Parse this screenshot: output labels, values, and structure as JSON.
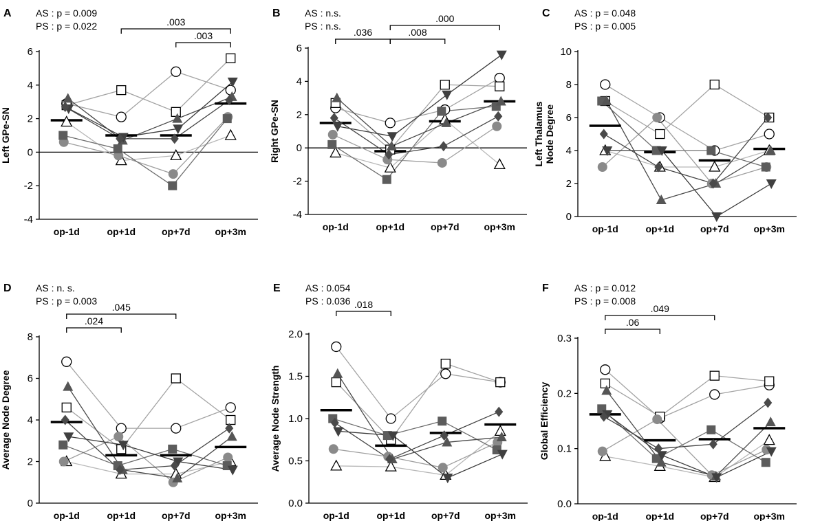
{
  "chart_data": [
    {
      "panel": "A",
      "type": "scatter",
      "categories": [
        "op-1d",
        "op+1d",
        "op+7d",
        "op+3m"
      ],
      "ylabel": [
        "Left GPe-SN"
      ],
      "ylim": [
        -4,
        6
      ],
      "yticks": [
        -4,
        -2,
        0,
        2,
        4,
        6
      ],
      "zero_line": true,
      "stats": [
        "AS : p = 0.009",
        "PS : p = 0.022"
      ],
      "brackets": [
        {
          "from": 1,
          "to": 3,
          "label": ".003",
          "level": 0
        },
        {
          "from": 2,
          "to": 3,
          "label": ".003",
          "level": 1
        }
      ],
      "means": [
        1.9,
        1.0,
        1.0,
        2.9
      ],
      "series": [
        {
          "name": "open-circle",
          "values": [
            2.9,
            2.1,
            4.8,
            3.7
          ]
        },
        {
          "name": "open-square",
          "values": [
            2.8,
            3.7,
            2.4,
            5.6
          ]
        },
        {
          "name": "open-triangle",
          "values": [
            1.8,
            -0.5,
            -0.2,
            1.0
          ]
        },
        {
          "name": "grey-circle",
          "values": [
            0.6,
            -0.2,
            -1.3,
            2.1
          ]
        },
        {
          "name": "dark-square",
          "values": [
            1.0,
            0.2,
            -2.0,
            2.0
          ]
        },
        {
          "name": "dark-triangle",
          "values": [
            3.2,
            0.7,
            2.0,
            3.3
          ]
        },
        {
          "name": "dark-inv-triangle",
          "values": [
            2.6,
            0.9,
            1.4,
            4.2
          ]
        },
        {
          "name": "dark-diamond",
          "values": [
            2.7,
            0.8,
            0.8,
            3.1
          ]
        }
      ]
    },
    {
      "panel": "B",
      "type": "scatter",
      "categories": [
        "op-1d",
        "op+1d",
        "op+7d",
        "op+3m"
      ],
      "ylabel": [
        "Right GPe-SN"
      ],
      "ylim": [
        -4,
        6
      ],
      "yticks": [
        -4,
        -2,
        0,
        2,
        4,
        6
      ],
      "zero_line": true,
      "stats": [
        "AS : n.s.",
        "PS : n.s."
      ],
      "brackets": [
        {
          "from": 0,
          "to": 1,
          "label": ".036",
          "level": 1
        },
        {
          "from": 1,
          "to": 2,
          "label": ".008",
          "level": 1
        },
        {
          "from": 1,
          "to": 3,
          "label": ".000",
          "level": 0
        }
      ],
      "means": [
        1.5,
        -0.2,
        1.6,
        2.8
      ],
      "series": [
        {
          "name": "open-circle",
          "values": [
            2.4,
            1.5,
            2.3,
            4.2
          ]
        },
        {
          "name": "open-square",
          "values": [
            2.7,
            -0.1,
            3.8,
            3.7
          ]
        },
        {
          "name": "open-triangle",
          "values": [
            -0.3,
            -1.2,
            1.7,
            -1.0
          ]
        },
        {
          "name": "grey-circle",
          "values": [
            0.8,
            -0.7,
            -0.9,
            1.3
          ]
        },
        {
          "name": "dark-square",
          "values": [
            0.2,
            -1.9,
            2.2,
            2.5
          ]
        },
        {
          "name": "dark-triangle",
          "values": [
            3.0,
            0.1,
            1.5,
            2.8
          ]
        },
        {
          "name": "dark-inv-triangle",
          "values": [
            1.3,
            0.7,
            3.2,
            5.6
          ]
        },
        {
          "name": "dark-diamond",
          "values": [
            1.8,
            -0.4,
            0.1,
            1.9
          ]
        }
      ]
    },
    {
      "panel": "C",
      "type": "scatter",
      "categories": [
        "op-1d",
        "op+1d",
        "op+7d",
        "op+3m"
      ],
      "ylabel": [
        "Left Thalamus",
        "Node Degree"
      ],
      "ylim": [
        0,
        10
      ],
      "yticks": [
        0,
        2,
        4,
        6,
        8,
        10
      ],
      "zero_line": false,
      "stats": [
        "AS : p = 0.048",
        "PS : p = 0.005"
      ],
      "brackets": [],
      "means": [
        5.5,
        3.9,
        3.4,
        4.1
      ],
      "series": [
        {
          "name": "open-circle",
          "values": [
            8,
            6,
            4,
            5
          ]
        },
        {
          "name": "open-square",
          "values": [
            7,
            5,
            8,
            6
          ]
        },
        {
          "name": "open-triangle",
          "values": [
            4,
            3,
            3,
            4
          ]
        },
        {
          "name": "grey-circle",
          "values": [
            3,
            6,
            2,
            3
          ]
        },
        {
          "name": "dark-square",
          "values": [
            7,
            4,
            4,
            3
          ]
        },
        {
          "name": "dark-triangle",
          "values": [
            7,
            1,
            2,
            4
          ]
        },
        {
          "name": "dark-inv-triangle",
          "values": [
            4,
            4,
            0,
            2
          ]
        },
        {
          "name": "dark-diamond",
          "values": [
            5,
            3,
            2,
            6
          ]
        }
      ]
    },
    {
      "panel": "D",
      "type": "scatter",
      "categories": [
        "op-1d",
        "op+1d",
        "op+7d",
        "op+3m"
      ],
      "ylabel": [
        "Average Node Degree"
      ],
      "ylim": [
        0,
        8
      ],
      "yticks": [
        0,
        2,
        4,
        6,
        8
      ],
      "zero_line": false,
      "stats": [
        "AS : n. s.",
        "PS : p = 0.003"
      ],
      "brackets": [
        {
          "from": 0,
          "to": 1,
          "label": ".024",
          "level": 1
        },
        {
          "from": 0,
          "to": 2,
          "label": ".045",
          "level": 0
        }
      ],
      "means": [
        3.9,
        2.3,
        2.3,
        2.7
      ],
      "series": [
        {
          "name": "open-circle",
          "values": [
            6.8,
            3.6,
            3.6,
            4.6
          ]
        },
        {
          "name": "open-square",
          "values": [
            4.6,
            2.6,
            6.0,
            4.0
          ]
        },
        {
          "name": "open-triangle",
          "values": [
            2.0,
            1.4,
            1.4,
            2.0
          ]
        },
        {
          "name": "grey-circle",
          "values": [
            2.0,
            3.2,
            1.0,
            2.2
          ]
        },
        {
          "name": "dark-square",
          "values": [
            2.8,
            1.8,
            2.6,
            1.8
          ]
        },
        {
          "name": "dark-triangle",
          "values": [
            5.6,
            1.6,
            1.2,
            3.2
          ]
        },
        {
          "name": "dark-inv-triangle",
          "values": [
            3.2,
            2.8,
            2.0,
            1.6
          ]
        },
        {
          "name": "dark-diamond",
          "values": [
            4.0,
            1.6,
            1.8,
            3.6
          ]
        }
      ]
    },
    {
      "panel": "E",
      "type": "scatter",
      "categories": [
        "op-1d",
        "op+1d",
        "op+7d",
        "op+3m"
      ],
      "ylabel": [
        "Average Node Strength"
      ],
      "ylim": [
        0,
        2.0
      ],
      "yticks": [
        0.0,
        0.5,
        1.0,
        1.5,
        2.0
      ],
      "tick_decimals": 1,
      "zero_line": false,
      "stats": [
        "AS : 0.054",
        "PS : 0.036"
      ],
      "brackets": [
        {
          "from": 0,
          "to": 1,
          "label": ".018",
          "level": 0
        }
      ],
      "means": [
        1.1,
        0.68,
        0.83,
        0.93
      ],
      "series": [
        {
          "name": "open-circle",
          "values": [
            1.85,
            1.0,
            1.53,
            1.43
          ]
        },
        {
          "name": "open-square",
          "values": [
            1.43,
            0.75,
            1.65,
            1.43
          ]
        },
        {
          "name": "open-triangle",
          "values": [
            0.44,
            0.43,
            0.33,
            0.85
          ]
        },
        {
          "name": "grey-circle",
          "values": [
            0.64,
            0.55,
            0.42,
            0.72
          ]
        },
        {
          "name": "dark-square",
          "values": [
            1.0,
            0.8,
            0.97,
            0.63
          ]
        },
        {
          "name": "dark-triangle",
          "values": [
            1.53,
            0.52,
            0.72,
            0.78
          ]
        },
        {
          "name": "dark-inv-triangle",
          "values": [
            0.85,
            0.8,
            0.3,
            0.58
          ]
        },
        {
          "name": "dark-diamond",
          "values": [
            0.95,
            0.52,
            0.8,
            1.08
          ]
        }
      ]
    },
    {
      "panel": "F",
      "type": "scatter",
      "categories": [
        "op-1d",
        "op+1d",
        "op+7d",
        "op+3m"
      ],
      "ylabel": [
        "Global Efficiency"
      ],
      "ylim": [
        0,
        0.3
      ],
      "yticks": [
        0.0,
        0.1,
        0.2,
        0.3
      ],
      "tick_decimals": 1,
      "zero_line": false,
      "stats": [
        "AS : p = 0.012",
        "PS : p = 0.008"
      ],
      "brackets": [
        {
          "from": 0,
          "to": 1,
          "label": ".06",
          "level": 1
        },
        {
          "from": 0,
          "to": 2,
          "label": ".049",
          "level": 0
        }
      ],
      "means": [
        0.162,
        0.115,
        0.117,
        0.137
      ],
      "series": [
        {
          "name": "open-circle",
          "values": [
            0.243,
            0.155,
            0.198,
            0.215
          ]
        },
        {
          "name": "open-square",
          "values": [
            0.218,
            0.158,
            0.232,
            0.222
          ]
        },
        {
          "name": "open-triangle",
          "values": [
            0.086,
            0.068,
            0.048,
            0.115
          ]
        },
        {
          "name": "grey-circle",
          "values": [
            0.095,
            0.153,
            0.052,
            0.098
          ]
        },
        {
          "name": "dark-square",
          "values": [
            0.172,
            0.082,
            0.134,
            0.075
          ]
        },
        {
          "name": "dark-triangle",
          "values": [
            0.205,
            0.075,
            0.05,
            0.148
          ]
        },
        {
          "name": "dark-inv-triangle",
          "values": [
            0.162,
            0.088,
            0.048,
            0.095
          ]
        },
        {
          "name": "dark-diamond",
          "values": [
            0.158,
            0.1,
            0.108,
            0.183
          ]
        }
      ]
    }
  ]
}
